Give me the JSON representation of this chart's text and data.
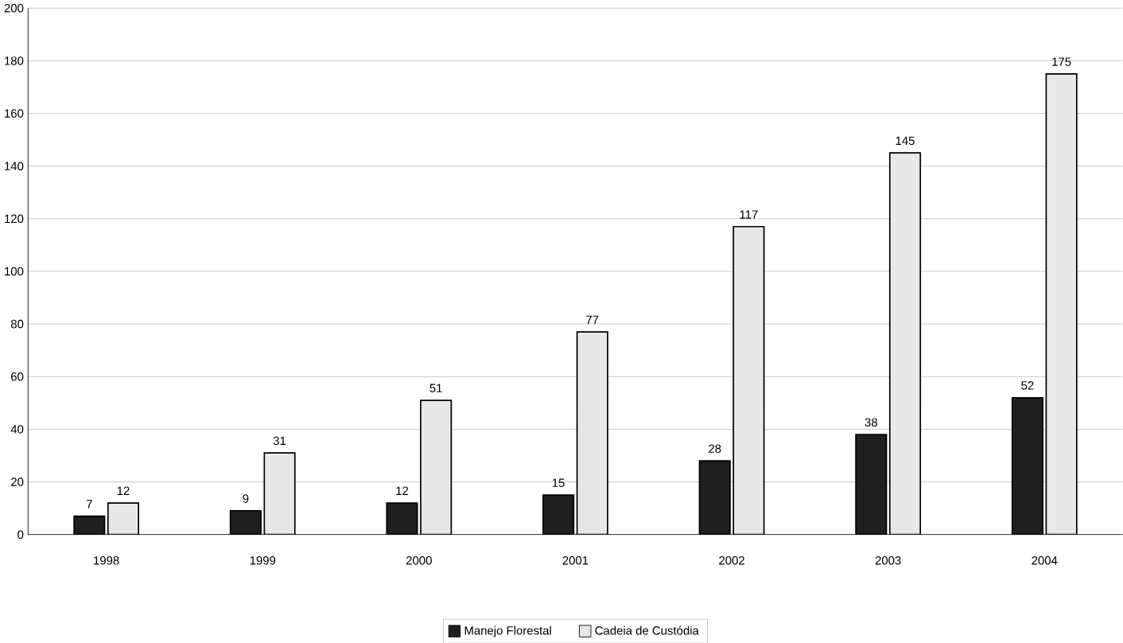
{
  "chart_data": {
    "type": "bar",
    "categories": [
      "1998",
      "1999",
      "2000",
      "2001",
      "2002",
      "2003",
      "2004"
    ],
    "series": [
      {
        "name": "Manejo Florestal",
        "color": "#1f1f1f",
        "values": [
          7,
          9,
          12,
          15,
          28,
          38,
          52
        ]
      },
      {
        "name": "Cadeia de Custódia",
        "color": "#e8e8e8",
        "values": [
          12,
          31,
          51,
          77,
          117,
          145,
          175
        ]
      }
    ],
    "ylim": [
      0,
      200
    ],
    "yticks": [
      0,
      20,
      40,
      60,
      80,
      100,
      120,
      140,
      160,
      180,
      200
    ],
    "grid": "y",
    "legend": "bottom",
    "data_labels": true
  }
}
